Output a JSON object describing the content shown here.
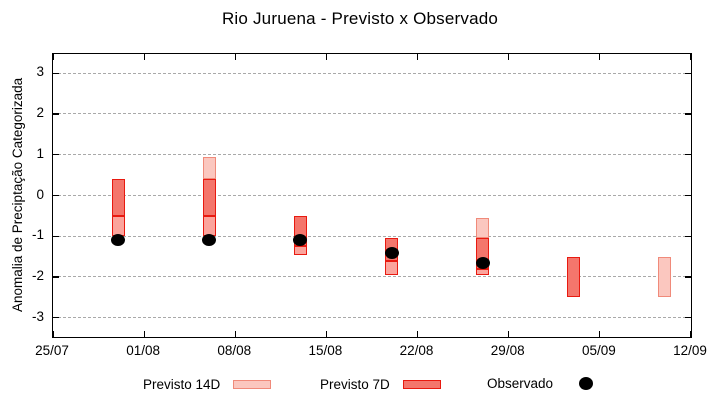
{
  "title": "Rio Juruena - Previsto x Observado",
  "legend": {
    "previsto_14d_label": "Previsto 14D",
    "previsto_7d_label": "Previsto 7D",
    "observado_label": "Observado"
  },
  "colors": {
    "pale_fill": "#fbc7bf",
    "pale_border": "#f08a7a",
    "salmon_fill": "#f4766c",
    "medium_fill": "#fba49c",
    "red_border": "#e81a10",
    "grid": "#a9a9a9",
    "dot": "#000000"
  },
  "chart_data": {
    "type": "candlestick-range",
    "title": "Rio Juruena - Previsto x Observado",
    "xlabel": "",
    "ylabel": "Anomalia de Preciptação Categorizada",
    "ylim": [
      -3.47,
      3.47
    ],
    "y_ticks": [
      -3,
      -2,
      -1,
      0,
      1,
      2,
      3
    ],
    "grid": "horizontal-dashed",
    "x_days_span": 49,
    "x_tick_days": [
      0,
      7,
      14,
      21,
      28,
      35,
      42,
      49
    ],
    "x_tick_labels": [
      "25/07",
      "01/08",
      "08/08",
      "15/08",
      "22/08",
      "29/08",
      "05/09",
      "12/09"
    ],
    "legend_position": "below",
    "series_legend": [
      "Previsto 14D",
      "Previsto 7D",
      "Observado"
    ],
    "bars": [
      {
        "date": "30/07",
        "day": 5,
        "observado": -1.1,
        "previsto_7d": [
          -0.5,
          0.4
        ],
        "previsto_14d": [
          -1.0,
          0.4
        ],
        "segments": [
          {
            "from": 0.4,
            "to": -0.5,
            "tone": "salmon"
          },
          {
            "from": -0.5,
            "to": -1.0,
            "tone": "medium"
          }
        ]
      },
      {
        "date": "06/08",
        "day": 12,
        "observado": -1.1,
        "previsto_7d": [
          -0.5,
          0.4
        ],
        "previsto_14d": [
          -1.0,
          0.95
        ],
        "segments": [
          {
            "from": 0.95,
            "to": 0.4,
            "tone": "pale"
          },
          {
            "from": 0.4,
            "to": -0.5,
            "tone": "salmon"
          },
          {
            "from": -0.5,
            "to": -1.0,
            "tone": "medium"
          }
        ]
      },
      {
        "date": "13/08",
        "day": 19,
        "observado": -1.1,
        "previsto_7d": [
          -1.25,
          -0.5
        ],
        "previsto_14d": [
          -1.45,
          -0.5
        ],
        "segments": [
          {
            "from": -0.5,
            "to": -1.25,
            "tone": "salmon"
          },
          {
            "from": -1.25,
            "to": -1.45,
            "tone": "medium"
          }
        ]
      },
      {
        "date": "20/08",
        "day": 26,
        "observado": -1.4,
        "previsto_7d": [
          -1.6,
          -1.05
        ],
        "previsto_14d": [
          -1.95,
          -1.05
        ],
        "segments": [
          {
            "from": -1.05,
            "to": -1.6,
            "tone": "salmon"
          },
          {
            "from": -1.6,
            "to": -1.95,
            "tone": "medium"
          }
        ]
      },
      {
        "date": "27/08",
        "day": 33,
        "observado": -1.65,
        "previsto_7d": [
          -1.8,
          -1.05
        ],
        "previsto_14d": [
          -1.95,
          -0.55
        ],
        "segments": [
          {
            "from": -0.55,
            "to": -1.05,
            "tone": "pale"
          },
          {
            "from": -1.05,
            "to": -1.8,
            "tone": "salmon"
          },
          {
            "from": -1.8,
            "to": -1.95,
            "tone": "medium"
          }
        ]
      },
      {
        "date": "03/09",
        "day": 40,
        "observado": null,
        "previsto_7d": [
          -2.5,
          -1.5
        ],
        "previsto_14d": null,
        "segments": [
          {
            "from": -1.5,
            "to": -2.5,
            "tone": "salmon"
          }
        ]
      },
      {
        "date": "10/09",
        "day": 47,
        "observado": null,
        "previsto_7d": null,
        "previsto_14d": [
          -2.5,
          -1.5
        ],
        "segments": [
          {
            "from": -1.5,
            "to": -2.5,
            "tone": "pale"
          }
        ]
      }
    ]
  }
}
